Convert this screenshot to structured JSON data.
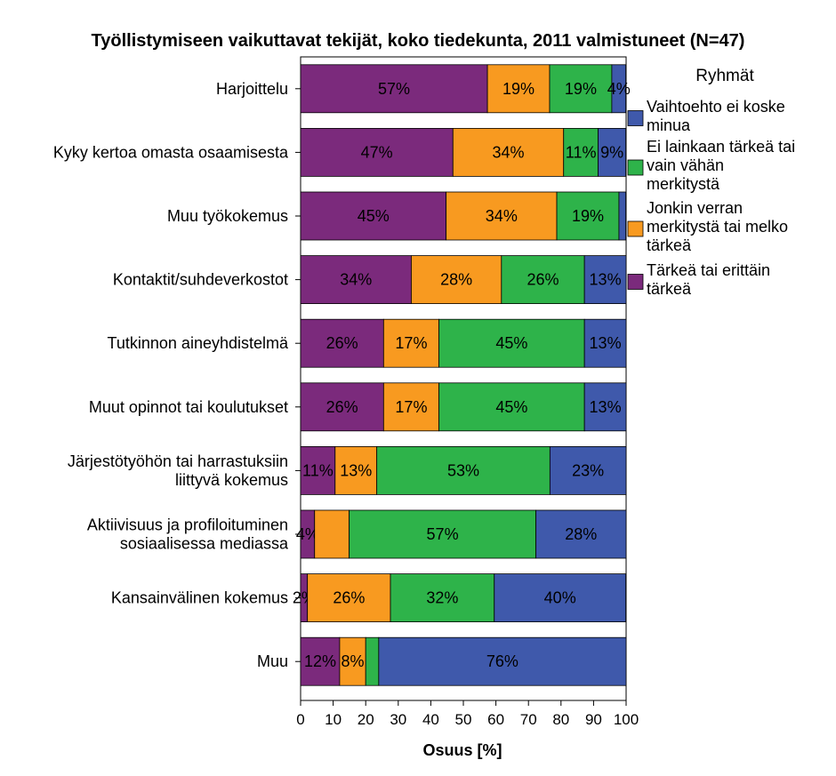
{
  "chart_data": {
    "type": "bar",
    "orientation": "horizontal",
    "stacked": true,
    "title": "Työllistymiseen vaikuttavat tekijät, koko tiedekunta, 2011 valmistuneet (N=47)",
    "xlabel": "Osuus [%]",
    "ylabel": "",
    "xlim": [
      0,
      100
    ],
    "xticks": [
      0,
      10,
      20,
      30,
      40,
      50,
      60,
      70,
      80,
      90,
      100
    ],
    "categories": [
      [
        "Harjoittelu"
      ],
      [
        "Kyky kertoa omasta osaamisesta"
      ],
      [
        "Muu työkokemus"
      ],
      [
        "Kontaktit/suhdeverkostot"
      ],
      [
        "Tutkinnon aineyhdistelmä"
      ],
      [
        "Muut opinnot tai koulutukset"
      ],
      [
        "Järjestötyöhön tai harrastuksiin",
        "liittyvä kokemus"
      ],
      [
        "Aktiivisuus ja profiloituminen",
        "sosiaalisessa mediassa"
      ],
      [
        "Kansainvälinen kokemus"
      ],
      [
        "Muu"
      ]
    ],
    "series": [
      {
        "name": "Tärkeä tai erittäin tärkeä",
        "color": "#7b2a7c",
        "values": [
          57.4,
          46.8,
          44.7,
          34.0,
          25.5,
          25.5,
          10.6,
          4.3,
          2.1,
          12.0
        ],
        "labels": [
          "57%",
          "47%",
          "45%",
          "34%",
          "26%",
          "26%",
          "11%",
          "4%",
          "2%",
          "12%"
        ]
      },
      {
        "name": "Jonkin verran merkitystä tai melko tärkeä",
        "color": "#f89a20",
        "values": [
          19.1,
          34.0,
          34.0,
          27.7,
          17.0,
          17.0,
          12.8,
          10.6,
          25.5,
          8.0
        ],
        "labels": [
          "19%",
          "34%",
          "34%",
          "28%",
          "17%",
          "17%",
          "13%",
          "",
          "26%",
          "8%"
        ]
      },
      {
        "name": "Ei lainkaan tärkeä tai vain vähän merkitystä",
        "color": "#2eb34a",
        "values": [
          19.1,
          10.6,
          19.1,
          25.5,
          44.7,
          44.7,
          53.2,
          57.4,
          31.9,
          4.0
        ],
        "labels": [
          "19%",
          "11%",
          "19%",
          "26%",
          "45%",
          "45%",
          "53%",
          "57%",
          "32%",
          ""
        ]
      },
      {
        "name": "Vaihtoehto ei koske minua",
        "color": "#3f59ab",
        "values": [
          4.3,
          8.5,
          2.1,
          12.8,
          12.8,
          12.8,
          23.4,
          27.7,
          40.4,
          76.0
        ],
        "labels": [
          "4%",
          "9%",
          "",
          "13%",
          "13%",
          "13%",
          "23%",
          "28%",
          "40%",
          "76%"
        ]
      }
    ],
    "legend": {
      "title": "Ryhmät",
      "position": "right",
      "order": [
        3,
        2,
        1,
        0
      ],
      "entries": [
        [
          "Vaihtoehto ei koske",
          "minua"
        ],
        [
          "Ei lainkaan tärkeä tai",
          "vain vähän",
          "merkitystä"
        ],
        [
          "Jonkin verran",
          "merkitystä tai melko",
          "tärkeä"
        ],
        [
          "Tärkeä tai erittäin",
          "tärkeä"
        ]
      ]
    }
  }
}
